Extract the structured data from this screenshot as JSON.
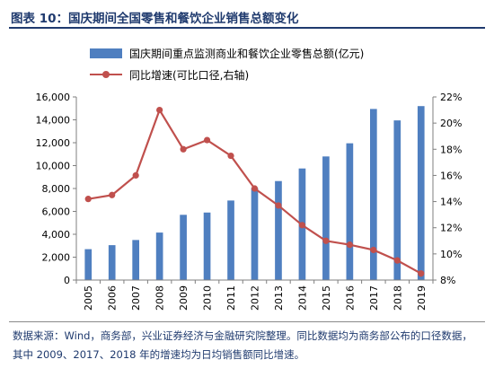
{
  "title": "图表 10：国庆期间全国零售和餐饮企业销售总额变化",
  "note": "数据来源：Wind，商务部，兴业证券经济与金融研究院整理。同比数据均为商务部公布的口径数据，其中 2009、2017、2018 年的增速均为日均销售额同比增速。",
  "colors": {
    "bar": "#4f7fc0",
    "line": "#c0504d",
    "title": "#1f3a6e"
  },
  "chart_data": {
    "type": "bar",
    "categories": [
      "2005",
      "2006",
      "2007",
      "2008",
      "2009",
      "2010",
      "2011",
      "2012",
      "2013",
      "2014",
      "2015",
      "2016",
      "2017",
      "2018",
      "2019"
    ],
    "series": [
      {
        "name": "国庆期间重点监测商业和餐饮企业零售总额(亿元)",
        "type": "bar",
        "axis": "left",
        "values": [
          2700,
          3050,
          3500,
          4150,
          5700,
          5900,
          6950,
          8050,
          8650,
          9750,
          10800,
          11950,
          14950,
          13950,
          15200
        ]
      },
      {
        "name": "同比增速(可比口径,右轴)",
        "type": "line",
        "axis": "right",
        "values": [
          14.2,
          14.5,
          16.0,
          21.0,
          18.0,
          18.7,
          17.5,
          15.0,
          13.7,
          12.2,
          11.0,
          10.7,
          10.3,
          9.5,
          8.5
        ]
      }
    ],
    "y_left": {
      "min": 0,
      "max": 16000,
      "ticks": [
        "0",
        "2,000",
        "4,000",
        "6,000",
        "8,000",
        "10,000",
        "12,000",
        "14,000",
        "16,000"
      ]
    },
    "y_right": {
      "min": 8,
      "max": 22,
      "ticks": [
        "8%",
        "10%",
        "12%",
        "14%",
        "16%",
        "18%",
        "20%",
        "22%"
      ]
    },
    "legend_placement": "top-left",
    "grid": false
  }
}
